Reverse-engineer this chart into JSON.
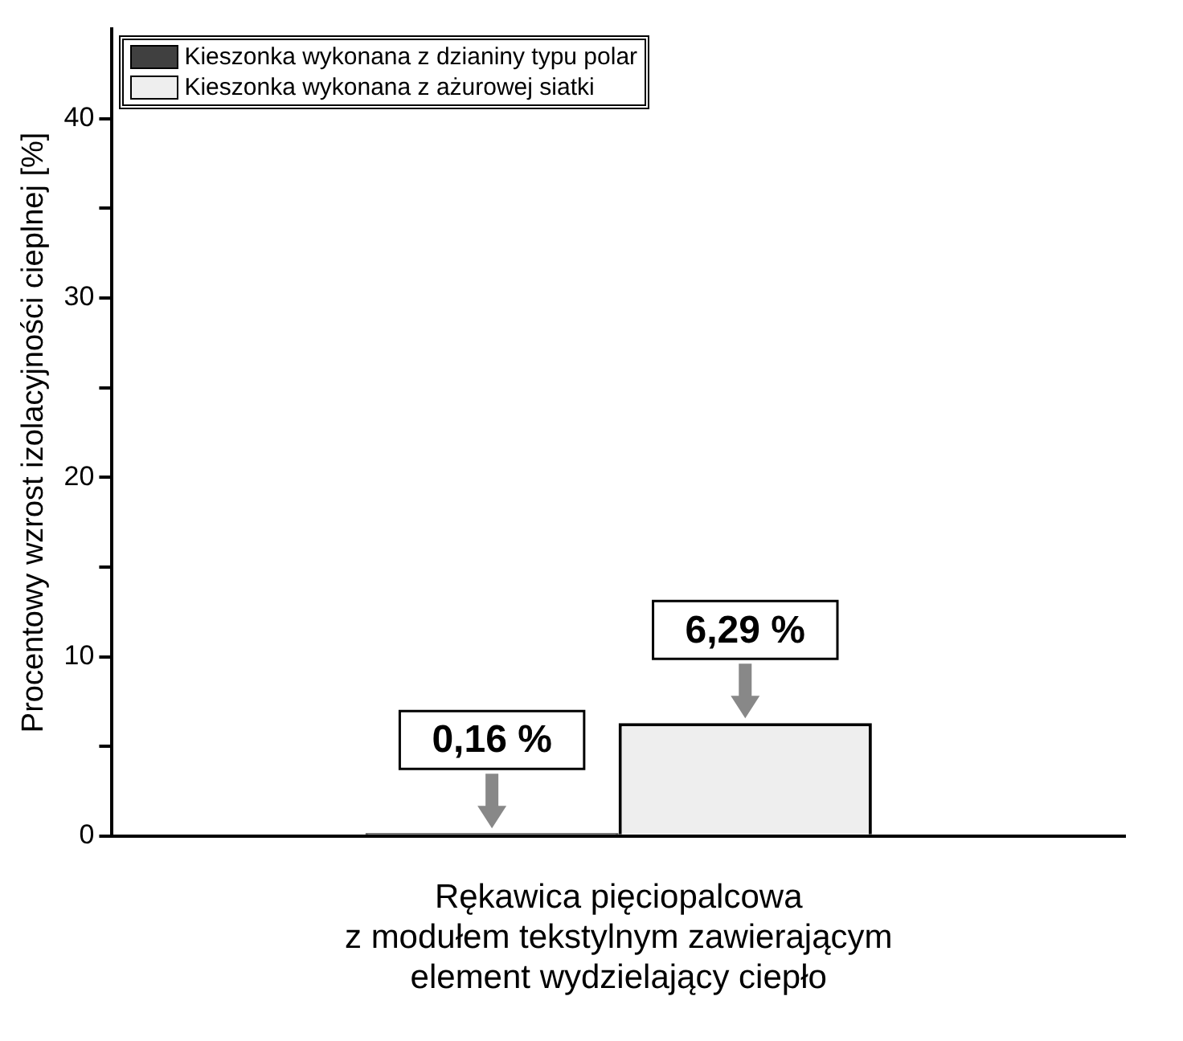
{
  "chart_data": {
    "type": "bar",
    "ylabel": "Procentowy wzrost izolacyjności cieplnej [%]",
    "categories": [
      "Rękawica pięciopalcowa\nz modułem tekstylnym zawierającym\nelement wydzielający ciepło"
    ],
    "series": [
      {
        "name": "Kieszonka wykonana z dzianiny typu polar",
        "color": "#404040",
        "values": [
          0.16
        ],
        "value_labels": [
          "0,16 %"
        ]
      },
      {
        "name": "Kieszonka wykonana z ażurowej siatki",
        "color": "#eeeeee",
        "values": [
          6.29
        ],
        "value_labels": [
          "6,29 %"
        ]
      }
    ],
    "ylim": [
      0,
      45
    ],
    "yticks": [
      0,
      {
        "value": 5,
        "label": null
      },
      10,
      {
        "value": 15,
        "label": null
      },
      20,
      {
        "value": 25,
        "label": null
      },
      30,
      {
        "value": 35,
        "label": null
      },
      40
    ],
    "grid": false,
    "legend": "top left"
  }
}
